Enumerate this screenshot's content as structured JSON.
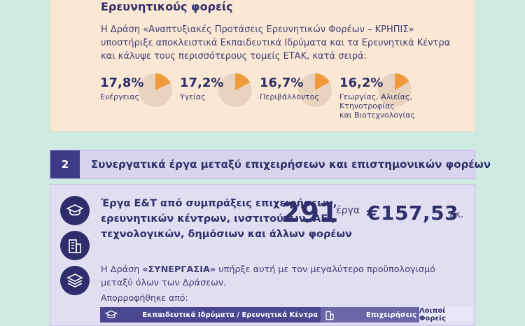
{
  "top_section": {
    "heading": "Ερευνητικούς φορείς",
    "paragraph": "Η Δράση «Αναπτυξιακές Προτάσεις Ερευνητικών Φορέων – ΚΡΗΠΙΣ» υποστήριξε αποκλειστικά Εκπαιδευτικά Ιδρύματα και τα Ερευνητικά Κέντρα και κάλυψε τους περισσότερους τομείς ΕΤΑΚ, κατά σειρά:",
    "stats": [
      {
        "value": "17,8%",
        "label": "Ενέργειας",
        "share": 0.178
      },
      {
        "value": "17,2%",
        "label": "Υγείας",
        "share": 0.172
      },
      {
        "value": "16,7%",
        "label": "Περιβάλλοντος",
        "share": 0.167
      },
      {
        "value": "16,2%",
        "label_lines": [
          "Γεωργίας, Αλιείας,",
          "Κτηνοτροφίας",
          "και Βιοτεχνολογίας"
        ],
        "share": 0.162
      }
    ],
    "pie_colors": {
      "slice": "#ef9b3c",
      "rest": "#e8d3be"
    }
  },
  "section2": {
    "number": "2",
    "title": "Συνεργατικά έργα μεταξύ επιχειρήσεων και επιστημονικών φορέων"
  },
  "projects": {
    "title": "Έργα Ε&Τ από συμπράξεις επιχειρήσεων, ερευνητικών κέντρων, ινστιτούτων, ΑΕΙ, τεχνολογικών, δημόσιων και άλλων φορέων",
    "count": "291",
    "count_unit": "έργα",
    "amount": "€157,53",
    "amount_unit": "εκ.",
    "icons": [
      "graduation-cap-icon",
      "building-icon",
      "layers-icon"
    ],
    "desc_prefix": "Η Δράση ",
    "desc_bold": "«ΣΥΝΕΡΓΑΣΙΑ»",
    "desc_suffix": " υπήρξε αυτή με τον μεγαλύτερο προϋπολογισμό μεταξύ όλων των Δράσεων.",
    "absorbed_label": "Απορροφήθηκε από:",
    "breakdown": [
      {
        "label": "Εκπαιδευτικά Ιδρύματα / Ερευνητικά Κέντρα",
        "icon": "graduation-cap-icon"
      },
      {
        "label": "Επιχειρήσεις",
        "icon": "building-icon"
      },
      {
        "label": "Λοιποί Φορείς"
      }
    ]
  },
  "colors": {
    "accent": "#2f2f6b",
    "top_bg": "#fbe8d4",
    "bottom_bg": "#e2def2",
    "page_bg": "#cfe9e3"
  }
}
